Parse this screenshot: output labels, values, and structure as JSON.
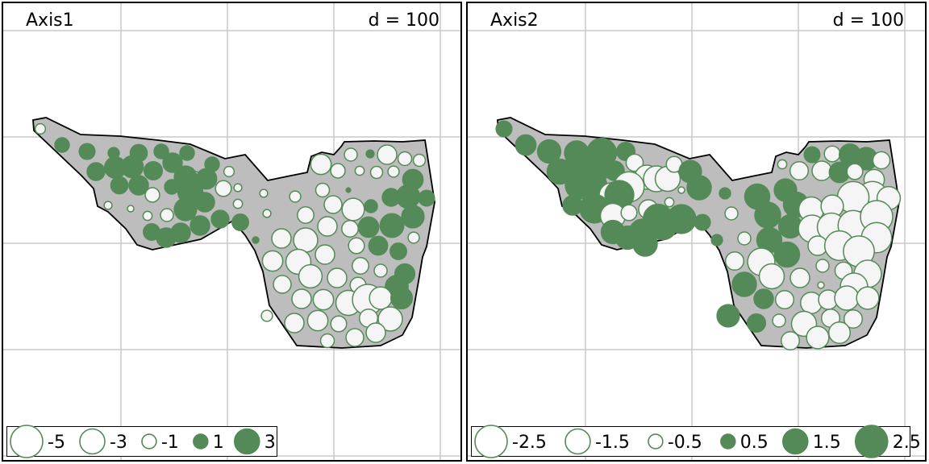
{
  "colors": {
    "positive": "#548a57",
    "negative_fill": "#f5f5f5",
    "stroke": "#548a57",
    "polygon": "#bdbdbd",
    "grid": "#c8c8c8"
  },
  "chart_data": [
    {
      "type": "scatter",
      "title": "Axis1",
      "scale_label": "d = 100",
      "legend": {
        "values": [
          -5,
          -3,
          -1,
          1,
          3
        ],
        "labels": [
          "-5",
          "-3",
          "-1",
          "1",
          "3"
        ]
      },
      "points": [
        [
          46,
          156,
          -0.5
        ],
        [
          73,
          176,
          1
        ],
        [
          104,
          184,
          1.2
        ],
        [
          115,
          209,
          1.5
        ],
        [
          137,
          186,
          0.6
        ],
        [
          139,
          204,
          2.2
        ],
        [
          160,
          203,
          2.3
        ],
        [
          168,
          186,
          1.4
        ],
        [
          186,
          208,
          1.6
        ],
        [
          196,
          184,
          1
        ],
        [
          210,
          198,
          1.8
        ],
        [
          228,
          186,
          1
        ],
        [
          238,
          218,
          -1
        ],
        [
          226,
          216,
          2.4
        ],
        [
          252,
          218,
          2
        ],
        [
          259,
          200,
          1
        ],
        [
          144,
          226,
          1.4
        ],
        [
          168,
          226,
          1.8
        ],
        [
          185,
          238,
          -1
        ],
        [
          209,
          228,
          1
        ],
        [
          232,
          234,
          3
        ],
        [
          250,
          247,
          1.8
        ],
        [
          273,
          230,
          -1.2
        ],
        [
          280,
          209,
          -0.5
        ],
        [
          291,
          229,
          -0.3
        ],
        [
          268,
          268,
          -0.8
        ],
        [
          130,
          251,
          -0.3
        ],
        [
          158,
          255,
          -0.2
        ],
        [
          179,
          264,
          -0.4
        ],
        [
          203,
          263,
          -0.8
        ],
        [
          226,
          256,
          2.4
        ],
        [
          244,
          276,
          1.8
        ],
        [
          269,
          268,
          1.5
        ],
        [
          294,
          272,
          1.3
        ],
        [
          184,
          284,
          1.3
        ],
        [
          202,
          291,
          1.8
        ],
        [
          220,
          285,
          1.8
        ],
        [
          291,
          249,
          -0.4
        ],
        [
          323,
          236,
          -0.3
        ],
        [
          313,
          294,
          0.2
        ],
        [
          327,
          261,
          -0.3
        ],
        [
          362,
          240,
          -0.6
        ],
        [
          394,
          200,
          -2
        ],
        [
          415,
          208,
          -1
        ],
        [
          431,
          188,
          -0.8
        ],
        [
          455,
          187,
          0.3
        ],
        [
          476,
          188,
          -1.8
        ],
        [
          498,
          193,
          -0.9
        ],
        [
          516,
          195,
          -0.7
        ],
        [
          442,
          208,
          -0.4
        ],
        [
          463,
          210,
          -0.7
        ],
        [
          484,
          209,
          -0.6
        ],
        [
          508,
          219,
          2
        ],
        [
          502,
          240,
          2.6
        ],
        [
          481,
          241,
          1.5
        ],
        [
          525,
          242,
          1.2
        ],
        [
          409,
          250,
          -1.5
        ],
        [
          434,
          256,
          -2.4
        ],
        [
          456,
          252,
          0.8
        ],
        [
          428,
          232,
          0.1
        ],
        [
          396,
          232,
          -0.9
        ],
        [
          375,
          263,
          -1.3
        ],
        [
          402,
          277,
          -1.8
        ],
        [
          430,
          280,
          -1.3
        ],
        [
          453,
          278,
          2
        ],
        [
          482,
          276,
          2.7
        ],
        [
          508,
          265,
          2.4
        ],
        [
          509,
          291,
          -0.6
        ],
        [
          345,
          292,
          -1.8
        ],
        [
          375,
          294,
          -2.8
        ],
        [
          399,
          312,
          -1.8
        ],
        [
          438,
          301,
          -1.2
        ],
        [
          465,
          301,
          1.7
        ],
        [
          490,
          308,
          1.3
        ],
        [
          334,
          320,
          -2
        ],
        [
          366,
          321,
          -3
        ],
        [
          381,
          339,
          -2.6
        ],
        [
          414,
          341,
          -1.8
        ],
        [
          443,
          326,
          -1.3
        ],
        [
          468,
          332,
          -0.8
        ],
        [
          498,
          336,
          1.9
        ],
        [
          346,
          349,
          -1.5
        ],
        [
          440,
          350,
          -1.2
        ],
        [
          488,
          352,
          2.5
        ],
        [
          370,
          367,
          -1.8
        ],
        [
          397,
          368,
          -2
        ],
        [
          428,
          372,
          -3
        ],
        [
          452,
          368,
          -4.5
        ],
        [
          468,
          366,
          -2.4
        ],
        [
          494,
          366,
          2.2
        ],
        [
          327,
          388,
          -0.6
        ],
        [
          361,
          397,
          -1.8
        ],
        [
          390,
          394,
          -2
        ],
        [
          416,
          398,
          -1.2
        ],
        [
          453,
          391,
          -1.6
        ],
        [
          480,
          392,
          -2.8
        ],
        [
          402,
          419,
          -0.9
        ],
        [
          436,
          415,
          -1.5
        ],
        [
          462,
          409,
          -1.8
        ]
      ]
    },
    {
      "type": "scatter",
      "title": "Axis2",
      "scale_label": "d = 100",
      "legend": {
        "values": [
          -2.5,
          -1.5,
          -0.5,
          0.5,
          1.5,
          2.5
        ],
        "labels": [
          "-2.5",
          "-1.5",
          "-0.5",
          "0.5",
          "1.5",
          "2.5"
        ]
      },
      "points": [
        [
          45,
          156,
          0.6
        ],
        [
          72,
          176,
          1
        ],
        [
          101,
          184,
          1.3
        ],
        [
          114,
          209,
          1.5
        ],
        [
          135,
          186,
          1.4
        ],
        [
          145,
          204,
          2.3
        ],
        [
          158,
          203,
          2.4
        ],
        [
          166,
          186,
          2.1
        ],
        [
          182,
          208,
          0.9
        ],
        [
          196,
          184,
          0.8
        ],
        [
          207,
          198,
          -0.7
        ],
        [
          222,
          216,
          -1.4
        ],
        [
          234,
          218,
          -1.6
        ],
        [
          248,
          218,
          -1.5
        ],
        [
          256,
          200,
          -0.6
        ],
        [
          276,
          209,
          1.2
        ],
        [
          287,
          229,
          1.4
        ],
        [
          138,
          226,
          1.8
        ],
        [
          155,
          226,
          1.9
        ],
        [
          178,
          238,
          -1.4
        ],
        [
          200,
          228,
          -2.2
        ],
        [
          188,
          238,
          2
        ],
        [
          130,
          251,
          0.9
        ],
        [
          157,
          255,
          2
        ],
        [
          180,
          264,
          -1.5
        ],
        [
          200,
          260,
          -0.6
        ],
        [
          224,
          256,
          -0.9
        ],
        [
          250,
          247,
          -0.2
        ],
        [
          265,
          232,
          -0.1
        ],
        [
          236,
          268,
          2.1
        ],
        [
          265,
          268,
          2
        ],
        [
          291,
          272,
          0.6
        ],
        [
          319,
          236,
          0.3
        ],
        [
          309,
          294,
          0.3
        ],
        [
          327,
          261,
          -0.4
        ],
        [
          180,
          284,
          1.3
        ],
        [
          198,
          291,
          1.3
        ],
        [
          217,
          285,
          1.8
        ],
        [
          242,
          276,
          1.9
        ],
        [
          220,
          299,
          1.4
        ],
        [
          390,
          200,
          -0.2
        ],
        [
          411,
          208,
          -0.8
        ],
        [
          427,
          188,
          0.6
        ],
        [
          452,
          187,
          -0.6
        ],
        [
          474,
          188,
          1.1
        ],
        [
          494,
          193,
          1.2
        ],
        [
          513,
          195,
          -0.7
        ],
        [
          439,
          208,
          -0.9
        ],
        [
          461,
          210,
          1
        ],
        [
          480,
          209,
          -0.6
        ],
        [
          504,
          219,
          -1
        ],
        [
          502,
          240,
          -2.2
        ],
        [
          478,
          241,
          -2.4
        ],
        [
          522,
          242,
          -1.3
        ],
        [
          407,
          250,
          1.5
        ],
        [
          426,
          256,
          -1.5
        ],
        [
          452,
          252,
          -1.2
        ],
        [
          394,
          232,
          1.2
        ],
        [
          359,
          240,
          1.5
        ],
        [
          372,
          263,
          1.6
        ],
        [
          400,
          277,
          1.3
        ],
        [
          427,
          280,
          -1.8
        ],
        [
          451,
          278,
          -1.9
        ],
        [
          478,
          276,
          -2.2
        ],
        [
          507,
          265,
          -2.5
        ],
        [
          507,
          291,
          -2.2
        ],
        [
          343,
          292,
          -0.4
        ],
        [
          374,
          294,
          1.5
        ],
        [
          396,
          312,
          1.5
        ],
        [
          434,
          301,
          -0.9
        ],
        [
          461,
          301,
          -2.1
        ],
        [
          485,
          308,
          -2.3
        ],
        [
          331,
          320,
          -0.8
        ],
        [
          364,
          321,
          -1.8
        ],
        [
          377,
          339,
          -1.5
        ],
        [
          412,
          341,
          -0.9
        ],
        [
          440,
          326,
          -0.4
        ],
        [
          466,
          332,
          -0.7
        ],
        [
          496,
          336,
          -1.8
        ],
        [
          343,
          349,
          1.4
        ],
        [
          438,
          350,
          -0.1
        ],
        [
          479,
          352,
          -1.8
        ],
        [
          367,
          367,
          0.9
        ],
        [
          393,
          368,
          -0.8
        ],
        [
          426,
          372,
          -1.1
        ],
        [
          447,
          368,
          -0.9
        ],
        [
          470,
          366,
          -1.4
        ],
        [
          496,
          366,
          -1.2
        ],
        [
          323,
          388,
          1.2
        ],
        [
          358,
          397,
          0.8
        ],
        [
          386,
          394,
          -0.4
        ],
        [
          417,
          398,
          -1.5
        ],
        [
          450,
          391,
          -0.8
        ],
        [
          478,
          392,
          -0.8
        ],
        [
          400,
          419,
          -0.8
        ],
        [
          434,
          415,
          -1.2
        ],
        [
          461,
          409,
          -1.1
        ]
      ]
    }
  ]
}
